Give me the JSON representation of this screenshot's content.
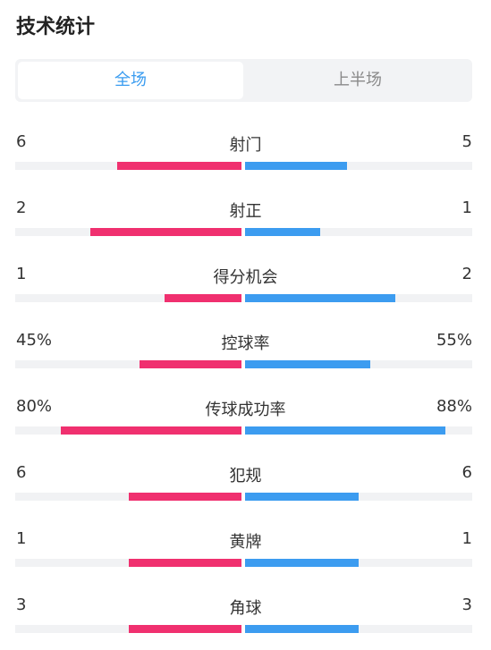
{
  "header": {
    "title": "技术统计"
  },
  "tabs": [
    {
      "label": "全场",
      "active": true
    },
    {
      "label": "上半场",
      "active": false
    }
  ],
  "colors": {
    "home": "#f0306f",
    "away": "#3c9cf0",
    "tab_active_text": "#3a9cf0",
    "tab_inactive_text": "#8a8a8a"
  },
  "stats": [
    {
      "label": "射门",
      "home": "6",
      "away": "5",
      "home_fill": 0.55,
      "away_fill": 0.45
    },
    {
      "label": "射正",
      "home": "2",
      "away": "1",
      "home_fill": 0.67,
      "away_fill": 0.33
    },
    {
      "label": "得分机会",
      "home": "1",
      "away": "2",
      "home_fill": 0.34,
      "away_fill": 0.66
    },
    {
      "label": "控球率",
      "home": "45%",
      "away": "55%",
      "home_fill": 0.45,
      "away_fill": 0.55
    },
    {
      "label": "传球成功率",
      "home": "80%",
      "away": "88%",
      "home_fill": 0.8,
      "away_fill": 0.88
    },
    {
      "label": "犯规",
      "home": "6",
      "away": "6",
      "home_fill": 0.5,
      "away_fill": 0.5
    },
    {
      "label": "黄牌",
      "home": "1",
      "away": "1",
      "home_fill": 0.5,
      "away_fill": 0.5
    },
    {
      "label": "角球",
      "home": "3",
      "away": "3",
      "home_fill": 0.5,
      "away_fill": 0.5
    }
  ]
}
